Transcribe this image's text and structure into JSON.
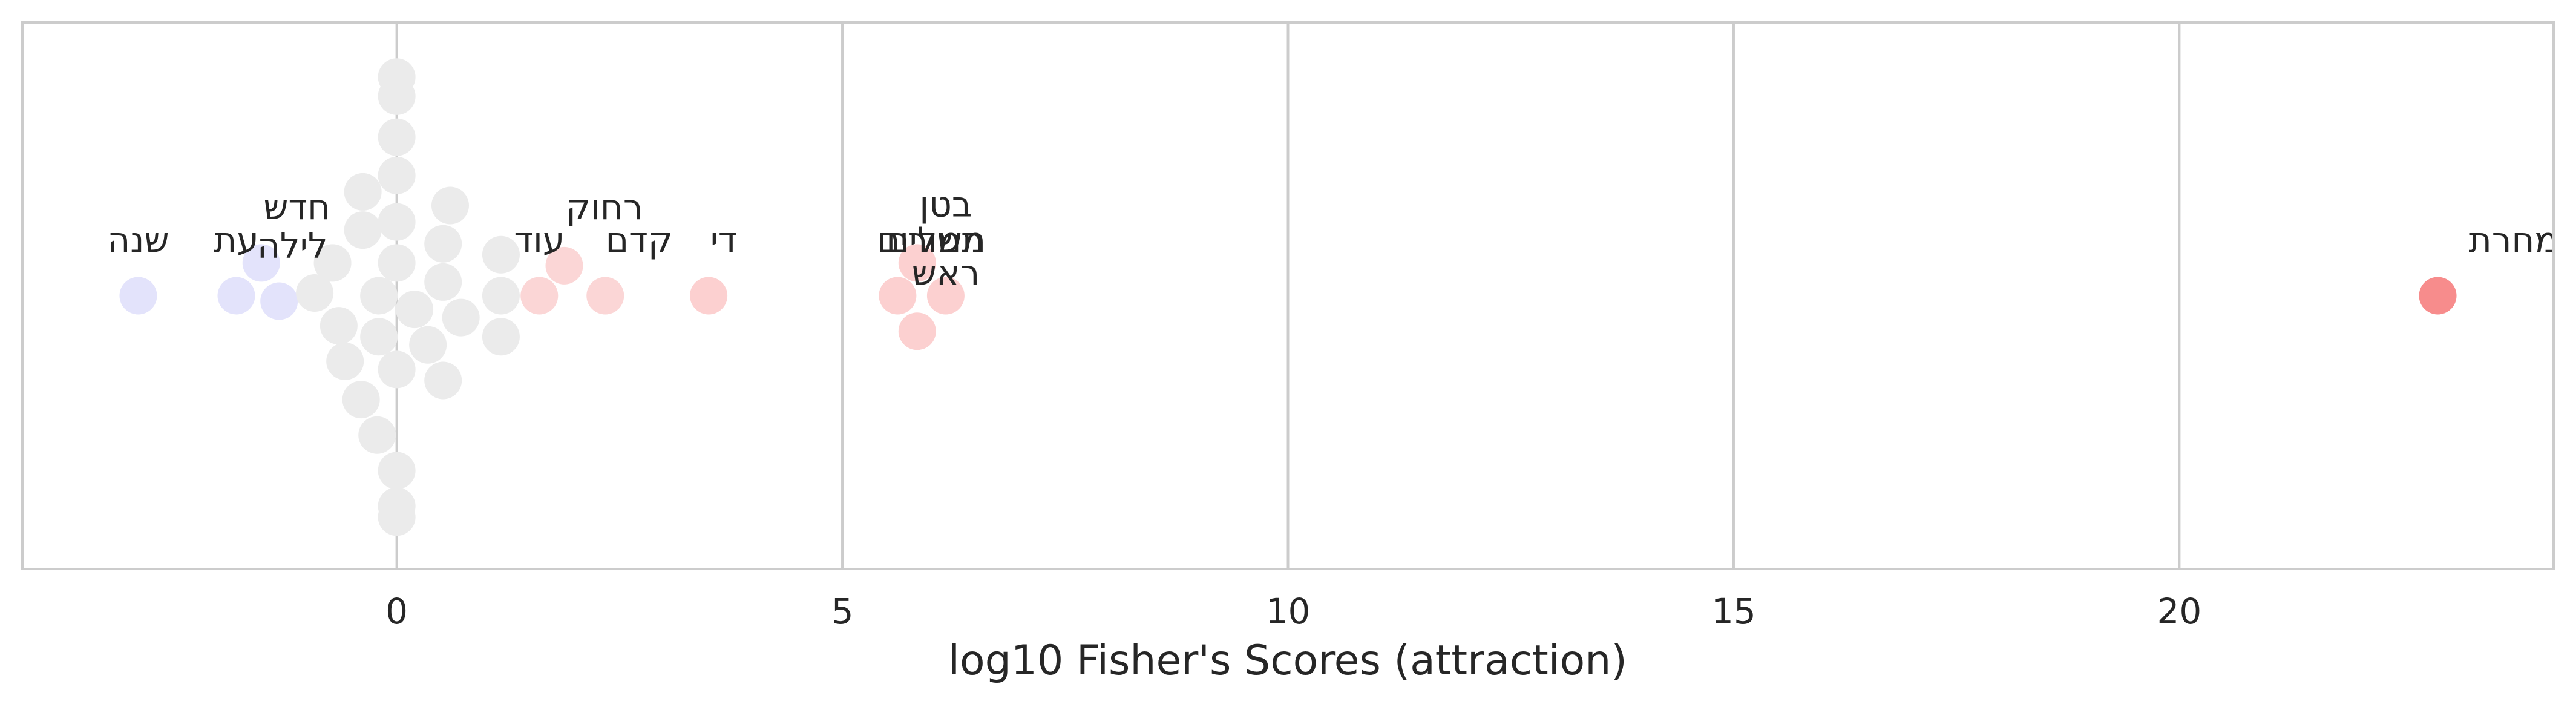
{
  "chart_data": {
    "type": "scatter",
    "variant": "swarm",
    "xlabel": "log10 Fisher's Scores (attraction)",
    "ylabel": "",
    "xlim": [
      -4.2,
      24.2
    ],
    "ylim": [
      -1,
      1
    ],
    "xticks": [
      0,
      5,
      10,
      15,
      20
    ],
    "xtick_labels": [
      "0",
      "5",
      "10",
      "15",
      "20"
    ],
    "grid": "vertical",
    "colors": {
      "neutral": "#ebebeb",
      "repulsion": "#e3e3fb",
      "attraction_light": "#fbd6d6",
      "attraction_mid": "#fcd0d0",
      "attraction_strong": "#f78c8c",
      "grid": "#cccccc",
      "frame": "#cccccc"
    },
    "points": [
      {
        "x": -2.9,
        "y": 0.0,
        "color": "#e3e3fb",
        "label": "שנה",
        "label_dx": 0,
        "label_dy": 0.16
      },
      {
        "x": -1.8,
        "y": 0.0,
        "color": "#e3e3fb",
        "label": "עת",
        "label_dx": 0,
        "label_dy": 0.16
      },
      {
        "x": -1.32,
        "y": -0.02,
        "color": "#e3e3fb",
        "label": "לילה",
        "label_dx": 0.15,
        "label_dy": 0.16
      },
      {
        "x": -1.52,
        "y": 0.12,
        "color": "#e3e3fb",
        "label": "חדש",
        "label_dx": 0.4,
        "label_dy": 0.16
      },
      {
        "x": -0.92,
        "y": 0.01,
        "color": "#ebebeb"
      },
      {
        "x": -0.72,
        "y": 0.12,
        "color": "#ebebeb"
      },
      {
        "x": -0.65,
        "y": -0.11,
        "color": "#ebebeb"
      },
      {
        "x": -0.58,
        "y": -0.24,
        "color": "#ebebeb"
      },
      {
        "x": -0.4,
        "y": -0.38,
        "color": "#ebebeb"
      },
      {
        "x": -0.38,
        "y": 0.24,
        "color": "#ebebeb"
      },
      {
        "x": -0.38,
        "y": 0.38,
        "color": "#ebebeb"
      },
      {
        "x": -0.22,
        "y": -0.51,
        "color": "#ebebeb"
      },
      {
        "x": -0.2,
        "y": 0.0,
        "color": "#ebebeb"
      },
      {
        "x": -0.2,
        "y": -0.15,
        "color": "#ebebeb"
      },
      {
        "x": 0.0,
        "y": 0.12,
        "color": "#ebebeb"
      },
      {
        "x": 0.0,
        "y": 0.27,
        "color": "#ebebeb"
      },
      {
        "x": 0.0,
        "y": 0.44,
        "color": "#ebebeb"
      },
      {
        "x": 0.0,
        "y": 0.58,
        "color": "#ebebeb"
      },
      {
        "x": 0.0,
        "y": 0.73,
        "color": "#ebebeb"
      },
      {
        "x": 0.0,
        "y": 0.8,
        "color": "#ebebeb"
      },
      {
        "x": 0.0,
        "y": -0.27,
        "color": "#ebebeb"
      },
      {
        "x": 0.0,
        "y": -0.64,
        "color": "#ebebeb"
      },
      {
        "x": 0.0,
        "y": -0.77,
        "color": "#ebebeb"
      },
      {
        "x": 0.0,
        "y": -0.81,
        "color": "#ebebeb"
      },
      {
        "x": 0.2,
        "y": -0.05,
        "color": "#ebebeb"
      },
      {
        "x": 0.35,
        "y": -0.18,
        "color": "#ebebeb"
      },
      {
        "x": 0.52,
        "y": 0.19,
        "color": "#ebebeb"
      },
      {
        "x": 0.52,
        "y": 0.05,
        "color": "#ebebeb"
      },
      {
        "x": 0.52,
        "y": -0.31,
        "color": "#ebebeb"
      },
      {
        "x": 0.6,
        "y": 0.33,
        "color": "#ebebeb"
      },
      {
        "x": 0.72,
        "y": -0.08,
        "color": "#ebebeb"
      },
      {
        "x": 1.17,
        "y": 0.15,
        "color": "#ebebeb"
      },
      {
        "x": 1.17,
        "y": 0.0,
        "color": "#ebebeb"
      },
      {
        "x": 1.17,
        "y": -0.15,
        "color": "#ebebeb"
      },
      {
        "x": 1.6,
        "y": 0.0,
        "color": "#fbd6d6",
        "label": "עוד",
        "label_dx": 0,
        "label_dy": 0.16
      },
      {
        "x": 1.88,
        "y": 0.11,
        "color": "#fbd6d6",
        "label": "רחוק",
        "label_dx": 0.45,
        "label_dy": 0.17
      },
      {
        "x": 2.34,
        "y": 0.0,
        "color": "#fbd6d6",
        "label": "קדם",
        "label_dx": 0.38,
        "label_dy": 0.16
      },
      {
        "x": 3.5,
        "y": 0.0,
        "color": "#fcd0d0",
        "label": "די",
        "label_dx": 0.17,
        "label_dy": 0.16
      },
      {
        "x": 5.62,
        "y": 0.0,
        "color": "#fcd0d0",
        "label": "משלים",
        "label_dx": 0.43,
        "label_dy": 0.16
      },
      {
        "x": 5.84,
        "y": 0.12,
        "color": "#fcd0d0",
        "label": "בטן",
        "label_dx": 0.32,
        "label_dy": 0.17
      },
      {
        "x": 6.16,
        "y": 0.0,
        "color": "#fcd0d0",
        "label": "תמורים",
        "label_dx": -0.17,
        "label_dy": 0.16
      },
      {
        "x": 5.84,
        "y": -0.13,
        "color": "#fcd0d0",
        "label": "ראש",
        "label_dx": 0.32,
        "label_dy": 0.17
      },
      {
        "x": 22.9,
        "y": 0.0,
        "color": "#f78c8c",
        "label": "מחרת",
        "label_dx": 0.85,
        "label_dy": 0.16
      }
    ]
  }
}
